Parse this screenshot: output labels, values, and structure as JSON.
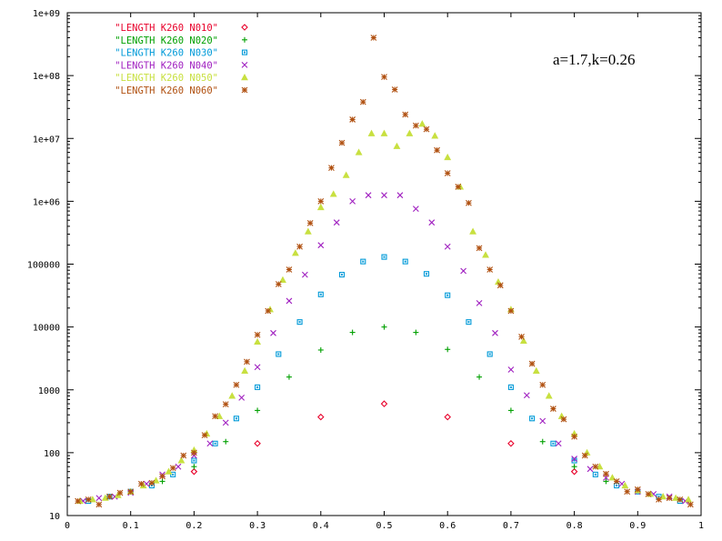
{
  "chart_data": {
    "type": "scatter",
    "title": "",
    "xlabel": "",
    "ylabel": "",
    "xlim": [
      0,
      1
    ],
    "ylim": [
      10,
      1000000000
    ],
    "yscale": "log",
    "grid": false,
    "legend_placement": "top-left",
    "annotation": "a=1.7,k=0.26",
    "x_ticks": [
      {
        "value": 0,
        "label": "0"
      },
      {
        "value": 0.1,
        "label": "0.1"
      },
      {
        "value": 0.2,
        "label": "0.2"
      },
      {
        "value": 0.3,
        "label": "0.3"
      },
      {
        "value": 0.4,
        "label": "0.4"
      },
      {
        "value": 0.5,
        "label": "0.5"
      },
      {
        "value": 0.6,
        "label": "0.6"
      },
      {
        "value": 0.7,
        "label": "0.7"
      },
      {
        "value": 0.8,
        "label": "0.8"
      },
      {
        "value": 0.9,
        "label": "0.9"
      },
      {
        "value": 1,
        "label": "1"
      }
    ],
    "y_ticks": [
      {
        "value": 10,
        "label": "10"
      },
      {
        "value": 100,
        "label": "100"
      },
      {
        "value": 1000,
        "label": "1000"
      },
      {
        "value": 10000,
        "label": "10000"
      },
      {
        "value": 100000,
        "label": "100000"
      },
      {
        "value": 1000000,
        "label": "1e+06"
      },
      {
        "value": 10000000,
        "label": "1e+07"
      },
      {
        "value": 100000000,
        "label": "1e+08"
      },
      {
        "value": 1000000000,
        "label": "1e+09"
      }
    ],
    "series": [
      {
        "name": "\"LENGTH K260 N010\"",
        "marker": "diamond",
        "color": "#e8002a",
        "points": [
          [
            0.2,
            50
          ],
          [
            0.3,
            140
          ],
          [
            0.4,
            370
          ],
          [
            0.5,
            600
          ],
          [
            0.6,
            370
          ],
          [
            0.7,
            140
          ],
          [
            0.8,
            50
          ]
        ]
      },
      {
        "name": "\"LENGTH K260 N020\"",
        "marker": "plus",
        "color": "#00a000",
        "points": [
          [
            0.15,
            35
          ],
          [
            0.2,
            60
          ],
          [
            0.25,
            150
          ],
          [
            0.3,
            470
          ],
          [
            0.35,
            1600
          ],
          [
            0.4,
            4300
          ],
          [
            0.45,
            8200
          ],
          [
            0.5,
            10000
          ],
          [
            0.55,
            8200
          ],
          [
            0.6,
            4400
          ],
          [
            0.65,
            1600
          ],
          [
            0.7,
            470
          ],
          [
            0.75,
            150
          ],
          [
            0.8,
            60
          ],
          [
            0.85,
            35
          ]
        ]
      },
      {
        "name": "\"LENGTH K260 N030\"",
        "marker": "square",
        "color": "#009ad8",
        "points": [
          [
            0.0333,
            17
          ],
          [
            0.0667,
            20
          ],
          [
            0.1,
            24
          ],
          [
            0.1333,
            30
          ],
          [
            0.1667,
            45
          ],
          [
            0.2,
            75
          ],
          [
            0.2333,
            140
          ],
          [
            0.2667,
            350
          ],
          [
            0.3,
            1100
          ],
          [
            0.3333,
            3700
          ],
          [
            0.3667,
            12000
          ],
          [
            0.4,
            33000
          ],
          [
            0.4333,
            68000
          ],
          [
            0.4667,
            110000
          ],
          [
            0.5,
            130000
          ],
          [
            0.5333,
            110000
          ],
          [
            0.5667,
            70000
          ],
          [
            0.6,
            32000
          ],
          [
            0.6333,
            12000
          ],
          [
            0.6667,
            3700
          ],
          [
            0.7,
            1100
          ],
          [
            0.7333,
            350
          ],
          [
            0.7667,
            140
          ],
          [
            0.8,
            75
          ],
          [
            0.8333,
            45
          ],
          [
            0.8667,
            30
          ],
          [
            0.9,
            24
          ],
          [
            0.9333,
            20
          ],
          [
            0.9667,
            17
          ]
        ]
      },
      {
        "name": "\"LENGTH K260 N040\"",
        "marker": "cross",
        "color": "#a020c0",
        "points": [
          [
            0.025,
            17
          ],
          [
            0.05,
            19
          ],
          [
            0.075,
            20
          ],
          [
            0.1,
            23
          ],
          [
            0.125,
            32
          ],
          [
            0.15,
            45
          ],
          [
            0.175,
            60
          ],
          [
            0.2,
            90
          ],
          [
            0.225,
            140
          ],
          [
            0.25,
            300
          ],
          [
            0.275,
            750
          ],
          [
            0.3,
            2300
          ],
          [
            0.325,
            8000
          ],
          [
            0.35,
            26000
          ],
          [
            0.375,
            68000
          ],
          [
            0.4,
            200000
          ],
          [
            0.425,
            460000
          ],
          [
            0.45,
            1000000
          ],
          [
            0.475,
            1250000
          ],
          [
            0.5,
            1250000
          ],
          [
            0.525,
            1250000
          ],
          [
            0.55,
            760000
          ],
          [
            0.575,
            460000
          ],
          [
            0.6,
            190000
          ],
          [
            0.625,
            78000
          ],
          [
            0.65,
            24000
          ],
          [
            0.675,
            8000
          ],
          [
            0.7,
            2100
          ],
          [
            0.725,
            820
          ],
          [
            0.75,
            320
          ],
          [
            0.775,
            140
          ],
          [
            0.8,
            80
          ],
          [
            0.825,
            55
          ],
          [
            0.85,
            40
          ],
          [
            0.875,
            32
          ],
          [
            0.9,
            24
          ],
          [
            0.925,
            22
          ],
          [
            0.95,
            20
          ],
          [
            0.975,
            17
          ]
        ]
      },
      {
        "name": "\"LENGTH K260 N050\"",
        "marker": "triangle",
        "color": "#c8e040",
        "points": [
          [
            0.02,
            17
          ],
          [
            0.04,
            18
          ],
          [
            0.06,
            19
          ],
          [
            0.08,
            21
          ],
          [
            0.1,
            24
          ],
          [
            0.12,
            30
          ],
          [
            0.14,
            36
          ],
          [
            0.16,
            50
          ],
          [
            0.18,
            75
          ],
          [
            0.2,
            110
          ],
          [
            0.22,
            200
          ],
          [
            0.24,
            380
          ],
          [
            0.26,
            800
          ],
          [
            0.28,
            2000
          ],
          [
            0.3,
            5800
          ],
          [
            0.32,
            19000
          ],
          [
            0.34,
            56000
          ],
          [
            0.36,
            150000
          ],
          [
            0.38,
            330000
          ],
          [
            0.4,
            800000
          ],
          [
            0.42,
            1300000
          ],
          [
            0.44,
            2600000
          ],
          [
            0.46,
            6000000
          ],
          [
            0.48,
            12000000
          ],
          [
            0.5,
            12000000
          ],
          [
            0.52,
            7500000
          ],
          [
            0.54,
            12000000
          ],
          [
            0.56,
            17000000
          ],
          [
            0.58,
            11000000
          ],
          [
            0.6,
            5000000
          ],
          [
            0.62,
            1700000
          ],
          [
            0.64,
            330000
          ],
          [
            0.66,
            140000
          ],
          [
            0.68,
            52000
          ],
          [
            0.7,
            19000
          ],
          [
            0.72,
            6000
          ],
          [
            0.74,
            2000
          ],
          [
            0.76,
            800
          ],
          [
            0.78,
            380
          ],
          [
            0.8,
            200
          ],
          [
            0.82,
            100
          ],
          [
            0.84,
            60
          ],
          [
            0.86,
            40
          ],
          [
            0.88,
            30
          ],
          [
            0.9,
            25
          ],
          [
            0.92,
            22
          ],
          [
            0.94,
            20
          ],
          [
            0.96,
            19
          ],
          [
            0.98,
            18
          ]
        ]
      },
      {
        "name": "\"LENGTH K260 N060\"",
        "marker": "star",
        "color": "#b05010",
        "points": [
          [
            0.0167,
            17
          ],
          [
            0.0333,
            18
          ],
          [
            0.05,
            15
          ],
          [
            0.0667,
            20
          ],
          [
            0.0833,
            23
          ],
          [
            0.1,
            24
          ],
          [
            0.1167,
            32
          ],
          [
            0.1333,
            33
          ],
          [
            0.15,
            42
          ],
          [
            0.1667,
            57
          ],
          [
            0.1833,
            90
          ],
          [
            0.2,
            100
          ],
          [
            0.2167,
            190
          ],
          [
            0.2333,
            380
          ],
          [
            0.25,
            590
          ],
          [
            0.2667,
            1200
          ],
          [
            0.2833,
            2800
          ],
          [
            0.3,
            7500
          ],
          [
            0.3167,
            18000
          ],
          [
            0.3333,
            48000
          ],
          [
            0.35,
            82000
          ],
          [
            0.3667,
            190000
          ],
          [
            0.3833,
            450000
          ],
          [
            0.4,
            1000000
          ],
          [
            0.4167,
            3400000
          ],
          [
            0.4333,
            8500000
          ],
          [
            0.45,
            20000000
          ],
          [
            0.4667,
            38000000
          ],
          [
            0.4833,
            400000000
          ],
          [
            0.5,
            95000000
          ],
          [
            0.5167,
            60000000
          ],
          [
            0.5333,
            24000000
          ],
          [
            0.55,
            16000000
          ],
          [
            0.5667,
            14000000
          ],
          [
            0.5833,
            6500000
          ],
          [
            0.6,
            2800000
          ],
          [
            0.6167,
            1700000
          ],
          [
            0.6333,
            940000
          ],
          [
            0.65,
            180000
          ],
          [
            0.6667,
            82000
          ],
          [
            0.6833,
            46000
          ],
          [
            0.7,
            18000
          ],
          [
            0.7167,
            7000
          ],
          [
            0.7333,
            2600
          ],
          [
            0.75,
            1200
          ],
          [
            0.7667,
            500
          ],
          [
            0.7833,
            340
          ],
          [
            0.8,
            180
          ],
          [
            0.8167,
            90
          ],
          [
            0.8333,
            60
          ],
          [
            0.85,
            46
          ],
          [
            0.8667,
            35
          ],
          [
            0.8833,
            24
          ],
          [
            0.9,
            26
          ],
          [
            0.9167,
            22
          ],
          [
            0.9333,
            18
          ],
          [
            0.95,
            19
          ],
          [
            0.9667,
            18
          ],
          [
            0.9833,
            15
          ]
        ]
      }
    ]
  }
}
